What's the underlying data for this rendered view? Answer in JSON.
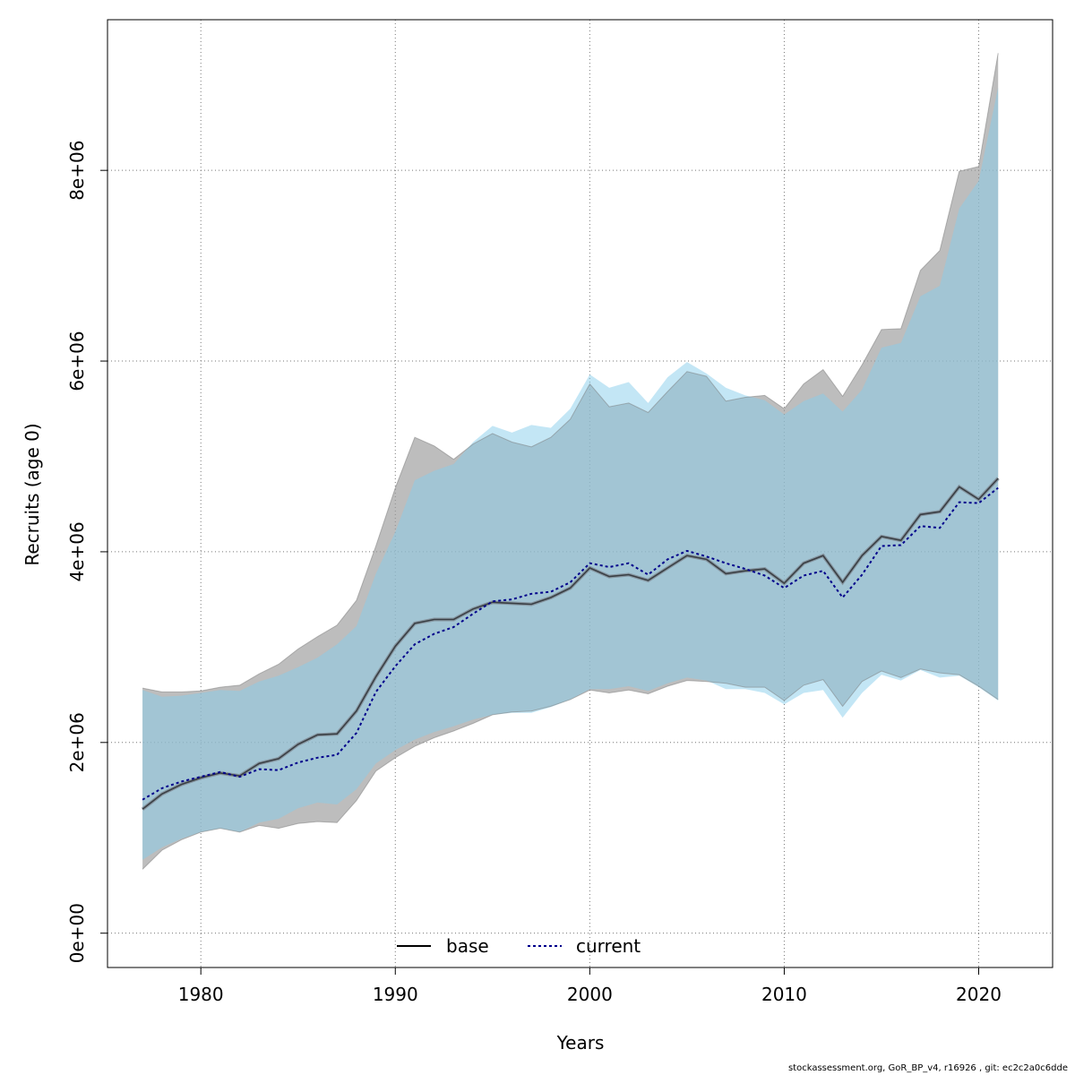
{
  "footer": {
    "note": "stockassessment.org, GoR_BP_v4, r16926 , git: ec2c2a0c6dde"
  },
  "chart_data": {
    "type": "area",
    "xlabel": "Years",
    "ylabel": "Recruits (age 0)",
    "xlim": [
      1975.2,
      2023.8
    ],
    "ylim": [
      -360000,
      9580000
    ],
    "x_ticks": [
      1980,
      1990,
      2000,
      2010,
      2020
    ],
    "y_ticks": [
      0,
      2000000,
      4000000,
      6000000,
      8000000
    ],
    "y_tick_labels": [
      "0e+00",
      "2e+06",
      "4e+06",
      "6e+06",
      "8e+06"
    ],
    "grid": true,
    "legend_position": "bottom",
    "colors": {
      "base_band": "#9a9a9a",
      "current_band": "#87ceeb",
      "base_line": "#000000",
      "current_line": "#00008b"
    },
    "years": [
      1977,
      1978,
      1979,
      1980,
      1981,
      1982,
      1983,
      1984,
      1985,
      1986,
      1987,
      1988,
      1989,
      1990,
      1991,
      1992,
      1993,
      1994,
      1995,
      1996,
      1997,
      1998,
      1999,
      2000,
      2001,
      2002,
      2003,
      2004,
      2005,
      2006,
      2007,
      2008,
      2009,
      2010,
      2011,
      2012,
      2013,
      2014,
      2015,
      2016,
      2017,
      2018,
      2019,
      2020,
      2021
    ],
    "series": [
      {
        "name": "base",
        "estimate": [
          1300000,
          1460000,
          1560000,
          1630000,
          1680000,
          1650000,
          1780000,
          1830000,
          1980000,
          2080000,
          2090000,
          2330000,
          2690000,
          3010000,
          3250000,
          3290000,
          3290000,
          3400000,
          3470000,
          3460000,
          3450000,
          3520000,
          3620000,
          3830000,
          3740000,
          3760000,
          3700000,
          3830000,
          3960000,
          3920000,
          3770000,
          3800000,
          3820000,
          3670000,
          3880000,
          3960000,
          3680000,
          3960000,
          4160000,
          4120000,
          4390000,
          4420000,
          4680000,
          4550000,
          4770000
        ],
        "lower": [
          670000,
          870000,
          980000,
          1060000,
          1100000,
          1060000,
          1130000,
          1100000,
          1150000,
          1170000,
          1160000,
          1390000,
          1700000,
          1840000,
          1960000,
          2050000,
          2120000,
          2200000,
          2290000,
          2320000,
          2330000,
          2380000,
          2450000,
          2550000,
          2520000,
          2550000,
          2510000,
          2590000,
          2650000,
          2640000,
          2620000,
          2580000,
          2580000,
          2440000,
          2600000,
          2660000,
          2380000,
          2640000,
          2750000,
          2680000,
          2770000,
          2730000,
          2710000,
          2590000,
          2450000
        ],
        "upper": [
          2570000,
          2530000,
          2530000,
          2540000,
          2580000,
          2600000,
          2720000,
          2820000,
          2980000,
          3110000,
          3230000,
          3490000,
          4060000,
          4670000,
          5200000,
          5110000,
          4970000,
          5130000,
          5240000,
          5150000,
          5100000,
          5200000,
          5390000,
          5760000,
          5520000,
          5560000,
          5460000,
          5680000,
          5890000,
          5840000,
          5580000,
          5620000,
          5640000,
          5500000,
          5760000,
          5910000,
          5630000,
          5960000,
          6330000,
          6340000,
          6950000,
          7160000,
          7990000,
          8040000,
          9230000
        ]
      },
      {
        "name": "current",
        "estimate": [
          1400000,
          1520000,
          1590000,
          1640000,
          1690000,
          1640000,
          1720000,
          1710000,
          1790000,
          1840000,
          1870000,
          2100000,
          2530000,
          2800000,
          3030000,
          3140000,
          3210000,
          3350000,
          3480000,
          3500000,
          3560000,
          3580000,
          3680000,
          3880000,
          3840000,
          3880000,
          3760000,
          3920000,
          4010000,
          3950000,
          3880000,
          3820000,
          3750000,
          3620000,
          3750000,
          3800000,
          3520000,
          3760000,
          4060000,
          4070000,
          4270000,
          4250000,
          4520000,
          4510000,
          4670000
        ],
        "lower": [
          770000,
          900000,
          990000,
          1060000,
          1100000,
          1060000,
          1160000,
          1200000,
          1310000,
          1370000,
          1350000,
          1510000,
          1780000,
          1920000,
          2030000,
          2110000,
          2170000,
          2240000,
          2290000,
          2310000,
          2310000,
          2370000,
          2450000,
          2560000,
          2560000,
          2590000,
          2540000,
          2620000,
          2680000,
          2650000,
          2560000,
          2560000,
          2520000,
          2400000,
          2520000,
          2550000,
          2260000,
          2520000,
          2710000,
          2650000,
          2760000,
          2680000,
          2700000,
          2580000,
          2440000
        ],
        "upper": [
          2550000,
          2480000,
          2490000,
          2520000,
          2550000,
          2540000,
          2640000,
          2700000,
          2790000,
          2890000,
          3030000,
          3220000,
          3770000,
          4210000,
          4750000,
          4850000,
          4920000,
          5150000,
          5320000,
          5250000,
          5330000,
          5300000,
          5500000,
          5860000,
          5720000,
          5780000,
          5560000,
          5830000,
          5990000,
          5870000,
          5720000,
          5640000,
          5590000,
          5440000,
          5580000,
          5660000,
          5470000,
          5700000,
          6140000,
          6190000,
          6680000,
          6790000,
          7600000,
          7890000,
          8870000
        ]
      }
    ]
  }
}
